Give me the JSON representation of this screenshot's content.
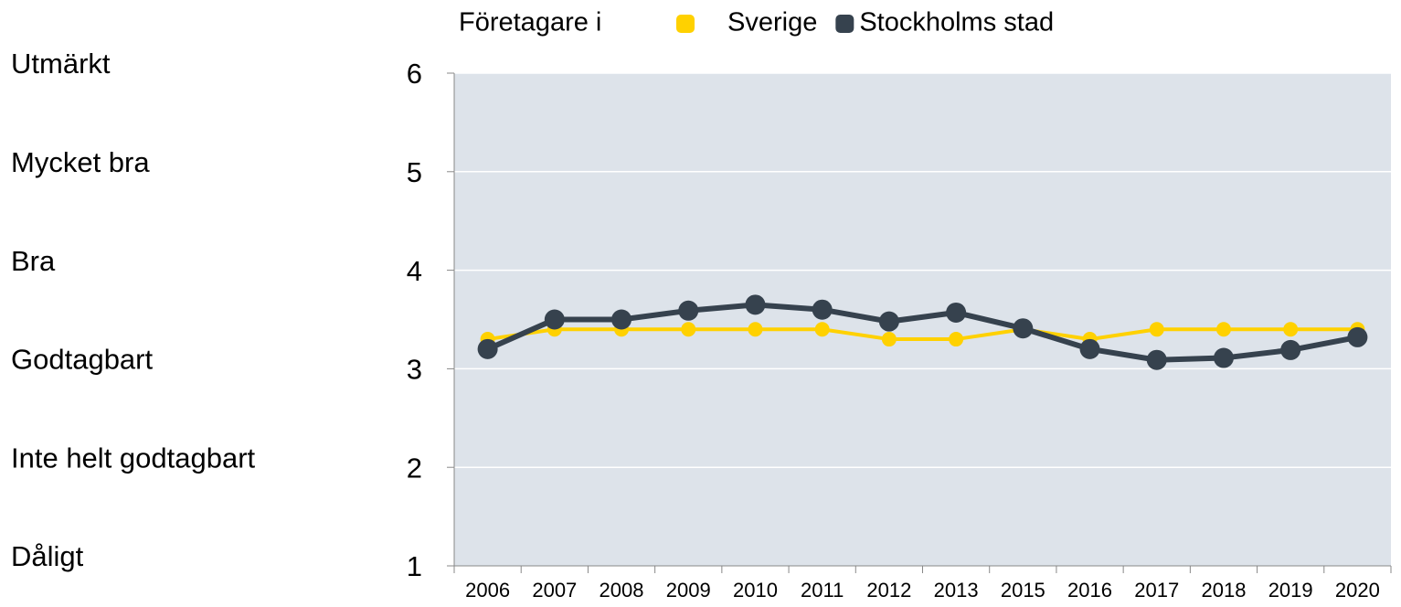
{
  "chart_data": {
    "type": "line",
    "legend_title": "Företagare i",
    "categories": [
      "2006",
      "2007",
      "2008",
      "2009",
      "2010",
      "2011",
      "2012",
      "2013",
      "2015",
      "2016",
      "2017",
      "2018",
      "2019",
      "2020"
    ],
    "series": [
      {
        "name": "Sverige",
        "color": "#ffd100",
        "values": [
          3.3,
          3.4,
          3.4,
          3.4,
          3.4,
          3.4,
          3.3,
          3.3,
          3.4,
          3.3,
          3.4,
          3.4,
          3.4,
          3.4
        ]
      },
      {
        "name": "Stockholms stad",
        "color": "#36424e",
        "values": [
          3.2,
          3.5,
          3.5,
          3.59,
          3.65,
          3.6,
          3.48,
          3.57,
          3.41,
          3.2,
          3.09,
          3.11,
          3.19,
          3.32
        ]
      }
    ],
    "ylim": [
      1,
      6
    ],
    "yticks": [
      1,
      2,
      3,
      4,
      5,
      6
    ],
    "y_labels": [
      "Dåligt",
      "Inte helt godtagbart",
      "Godtagbart",
      "Bra",
      "Mycket bra",
      "Utmärkt"
    ],
    "grid": true,
    "plot_background": "#dde3ea"
  }
}
